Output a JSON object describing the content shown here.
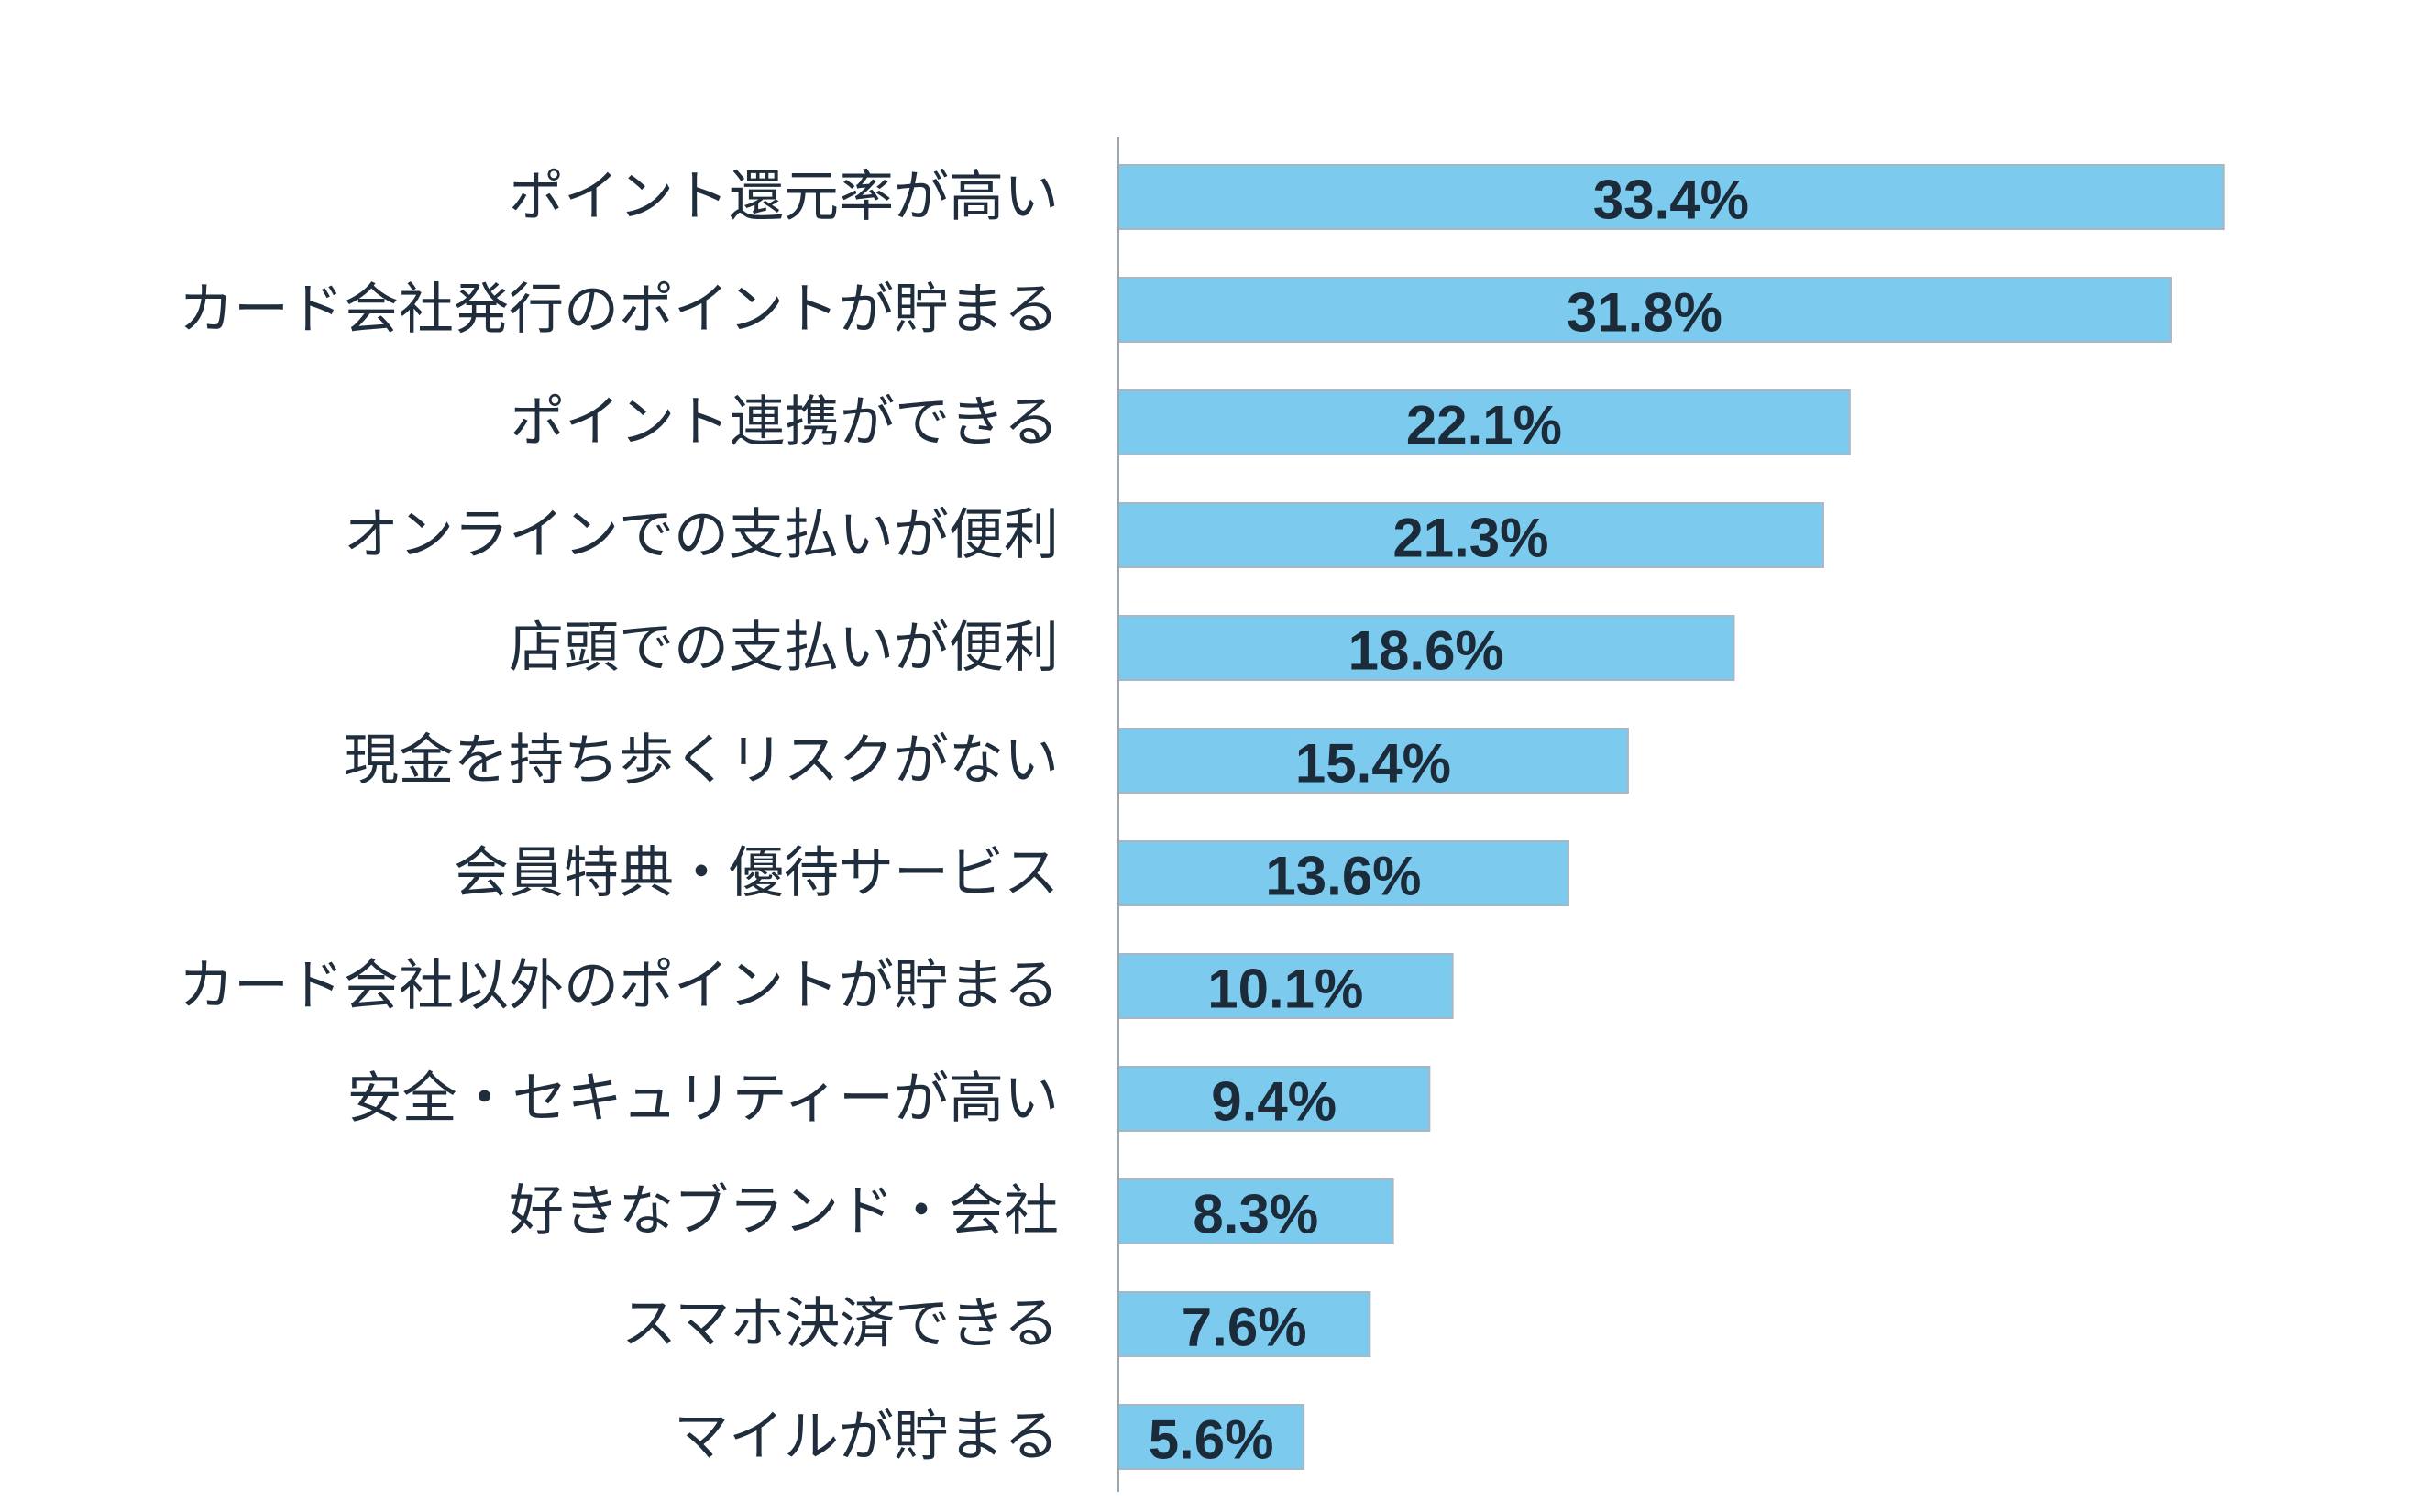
{
  "chart_data": {
    "type": "bar",
    "orientation": "horizontal",
    "categories": [
      "ポイント還元率が高い",
      "カード会社発行のポイントが貯まる",
      "ポイント連携ができる",
      "オンラインでの支払いが便利",
      "店頭での支払いが便利",
      "現金を持ち歩くリスクがない",
      "会員特典・優待サービス",
      "カード会社以外のポイントが貯まる",
      "安全・セキュリティーが高い",
      "好きなブランド・会社",
      "スマホ決済できる",
      "マイルが貯まる"
    ],
    "values": [
      33.4,
      31.8,
      22.1,
      21.3,
      18.6,
      15.4,
      13.6,
      10.1,
      9.4,
      8.3,
      7.6,
      5.6
    ],
    "value_labels": [
      "33.4%",
      "31.8%",
      "22.1%",
      "21.3%",
      "18.6%",
      "15.4%",
      "13.6%",
      "10.1%",
      "9.4%",
      "8.3%",
      "7.6%",
      "5.6%"
    ],
    "unit": "%",
    "xlim": [
      0,
      40
    ],
    "grid": false,
    "legend": "none",
    "bar_color": "#7ccbef",
    "bar_edge_color": "#a9b7c2",
    "axis_color": "#9aa7b2",
    "label_color": "#1f2d3d",
    "value_label_color": "#1c2b3a"
  }
}
